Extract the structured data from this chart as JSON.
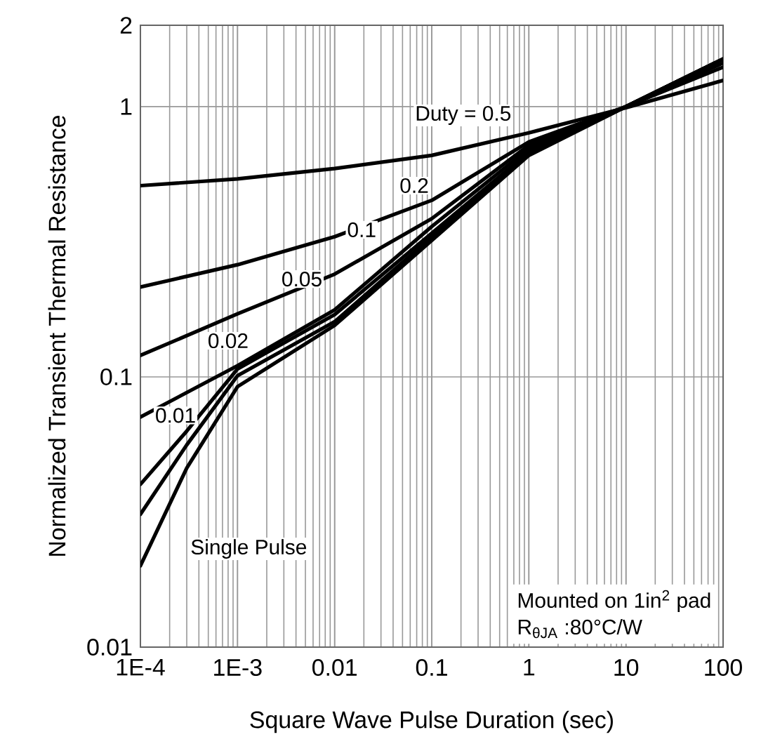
{
  "chart_data": {
    "type": "line",
    "xlabel": "Square Wave Pulse Duration (sec)",
    "ylabel": "Normalized Transient Thermal Resistance",
    "x": [
      0.0001,
      0.001,
      0.01,
      0.1,
      1,
      10,
      100
    ],
    "series": [
      {
        "color": "#000000",
        "values": [
          0.51,
          0.54,
          0.59,
          0.66,
          0.8,
          0.99,
          1.25
        ]
      },
      {
        "color": "#000000",
        "values": [
          0.215,
          0.26,
          0.33,
          0.45,
          0.74,
          1.0,
          1.4
        ]
      },
      {
        "color": "#000000",
        "values": [
          0.12,
          0.171,
          0.24,
          0.385,
          0.72,
          1.0,
          1.45
        ]
      },
      {
        "color": "#000000",
        "values": [
          0.071,
          0.11,
          0.177,
          0.36,
          0.7,
          1.0,
          1.5
        ]
      },
      {
        "color": "#000000",
        "x": [
          0.0001,
          0.0003,
          0.001,
          0.01,
          0.1,
          1,
          10,
          100
        ],
        "values": [
          0.04,
          0.063,
          0.107,
          0.17,
          0.34,
          0.68,
          1.0,
          1.5
        ]
      },
      {
        "color": "#000000",
        "x": [
          0.0001,
          0.0003,
          0.001,
          0.01,
          0.1,
          1,
          10,
          100
        ],
        "values": [
          0.031,
          0.056,
          0.101,
          0.16,
          0.33,
          0.67,
          1.0,
          1.5
        ]
      },
      {
        "color": "#000000",
        "x": [
          0.0001,
          0.0003,
          0.001,
          0.01,
          0.1,
          1,
          10,
          100
        ],
        "values": [
          0.02,
          0.046,
          0.092,
          0.155,
          0.32,
          0.66,
          1.0,
          1.5
        ]
      }
    ],
    "annotations": [
      "Duty = 0.5",
      "Single Pulse",
      {
        "text": "0.2",
        "x": 0.066,
        "y": 0.51
      },
      {
        "text": "0.1",
        "x": 0.019,
        "y": 0.35
      },
      {
        "text": "0.05",
        "x": 0.0046,
        "y": 0.23
      },
      {
        "text": "0.02",
        "x": 0.0008,
        "y": 0.136
      },
      {
        "text": "0.01",
        "x": 0.00023,
        "y": 0.072
      },
      "Mounted on 1in$^{2}$ pad",
      "R$_{θJA}$ :80°C/W"
    ],
    "log": "xy",
    "grid": true,
    "marker": "none",
    "line_style": "solid",
    "xlim": [
      0.0001,
      100
    ],
    "ylim": [
      0.01,
      2
    ],
    "xticks": [
      {
        "value": 0.0001,
        "label": "1E-4"
      },
      {
        "value": 0.001,
        "label": "1E-3"
      },
      0.01,
      0.1,
      1,
      10,
      100
    ],
    "yticks": [
      0.01,
      0.1,
      1,
      2
    ]
  }
}
